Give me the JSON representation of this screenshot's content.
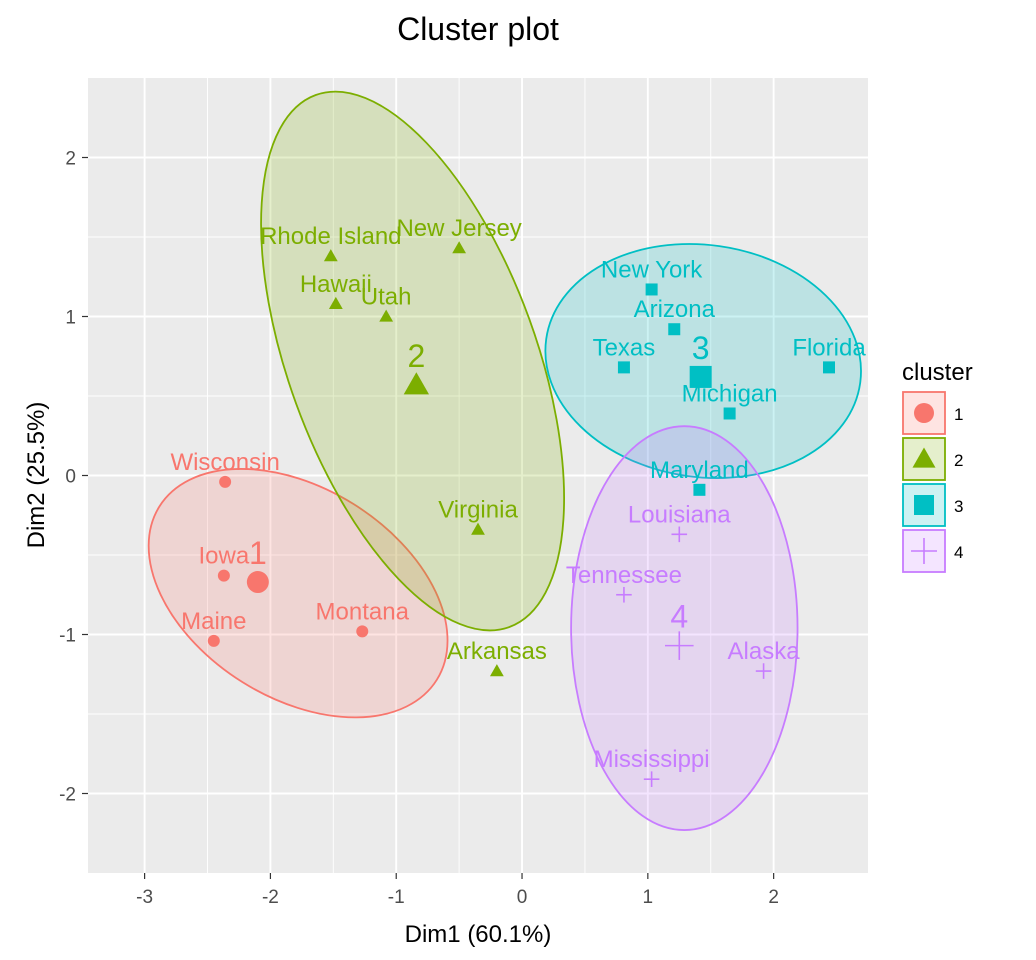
{
  "chart_data": {
    "type": "scatter",
    "title": "Cluster plot",
    "xlabel": "Dim1 (60.1%)",
    "ylabel": "Dim2 (25.5%)",
    "xlim": [
      -3.45,
      2.75
    ],
    "ylim": [
      -2.5,
      2.5
    ],
    "xticks": [
      -3,
      -2,
      -1,
      0,
      1,
      2
    ],
    "yticks": [
      -2,
      -1,
      0,
      1,
      2
    ],
    "grid": true,
    "legend": {
      "title": "cluster",
      "position": "right",
      "entries": [
        "1",
        "2",
        "3",
        "4"
      ]
    },
    "colors": {
      "panel": "#EBEBEB",
      "grid": "#FFFFFF",
      "1": "#F8766D",
      "2": "#7CAE00",
      "3": "#00BFC4",
      "4": "#C77CFF"
    },
    "series": [
      {
        "name": "1",
        "shape": "circle",
        "centroid": {
          "x": -2.1,
          "y": -0.67
        },
        "ellipse": {
          "cx": -1.78,
          "cy": -0.74,
          "rx": 1.3,
          "ry": 0.66,
          "angle_deg": -32
        },
        "points": [
          {
            "label": "Wisconsin",
            "x": -2.36,
            "y": -0.04
          },
          {
            "label": "Iowa",
            "x": -2.37,
            "y": -0.63
          },
          {
            "label": "Maine",
            "x": -2.45,
            "y": -1.04
          },
          {
            "label": "Montana",
            "x": -1.27,
            "y": -0.98
          }
        ]
      },
      {
        "name": "2",
        "shape": "triangle",
        "centroid": {
          "x": -0.84,
          "y": 0.57
        },
        "ellipse": {
          "cx": -0.87,
          "cy": 0.72,
          "rx": 2.25,
          "ry": 0.78,
          "angle_deg": -70
        },
        "points": [
          {
            "label": "Rhode Island",
            "x": -1.52,
            "y": 1.38
          },
          {
            "label": "New Jersey",
            "x": -0.5,
            "y": 1.43
          },
          {
            "label": "Hawaii",
            "x": -1.48,
            "y": 1.08
          },
          {
            "label": "Utah",
            "x": -1.08,
            "y": 1.0
          },
          {
            "label": "Virginia",
            "x": -0.35,
            "y": -0.34
          },
          {
            "label": "Arkansas",
            "x": -0.2,
            "y": -1.23
          }
        ]
      },
      {
        "name": "3",
        "shape": "square",
        "centroid": {
          "x": 1.42,
          "y": 0.62
        },
        "ellipse": {
          "cx": 1.44,
          "cy": 0.72,
          "rx": 1.26,
          "ry": 0.73,
          "angle_deg": -8
        },
        "points": [
          {
            "label": "New York",
            "x": 1.03,
            "y": 1.17
          },
          {
            "label": "Arizona",
            "x": 1.21,
            "y": 0.92
          },
          {
            "label": "Texas",
            "x": 0.81,
            "y": 0.68
          },
          {
            "label": "Florida",
            "x": 2.44,
            "y": 0.68
          },
          {
            "label": "Michigan",
            "x": 1.65,
            "y": 0.39
          },
          {
            "label": "Maryland",
            "x": 1.41,
            "y": -0.09
          }
        ]
      },
      {
        "name": "4",
        "shape": "cross",
        "centroid": {
          "x": 1.25,
          "y": -1.07
        },
        "ellipse": {
          "cx": 1.29,
          "cy": -0.96,
          "rx": 0.9,
          "ry": 1.27,
          "angle_deg": 0
        },
        "points": [
          {
            "label": "Louisiana",
            "x": 1.25,
            "y": -0.37
          },
          {
            "label": "Tennessee",
            "x": 0.81,
            "y": -0.75
          },
          {
            "label": "Alaska",
            "x": 1.92,
            "y": -1.23
          },
          {
            "label": "Mississippi",
            "x": 1.03,
            "y": -1.91
          }
        ]
      }
    ]
  }
}
